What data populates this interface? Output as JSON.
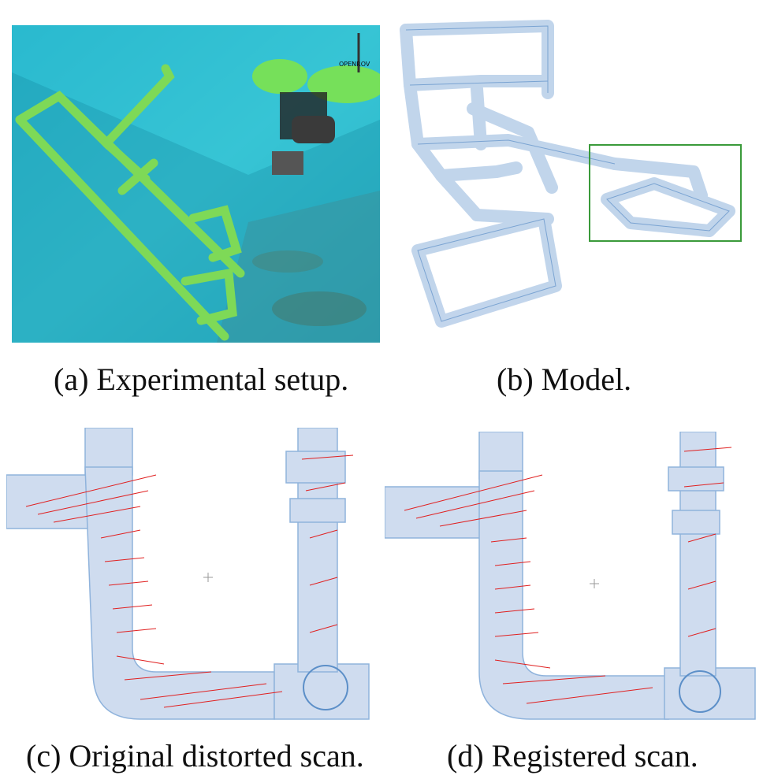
{
  "figure": {
    "captions": {
      "a": "(a) Experimental setup.",
      "b": "(b) Model.",
      "c": "(c) Original distorted scan.",
      "d": "(d) Registered scan."
    },
    "colors": {
      "water": "#2bb5c9",
      "pipe_green": "#7ed957",
      "model_blue": "#8fb3dc",
      "scan_red": "#e02020",
      "highlight_box": "#3a9a3a"
    }
  },
  "photo_a": {
    "robot_label": "OPENROV"
  }
}
